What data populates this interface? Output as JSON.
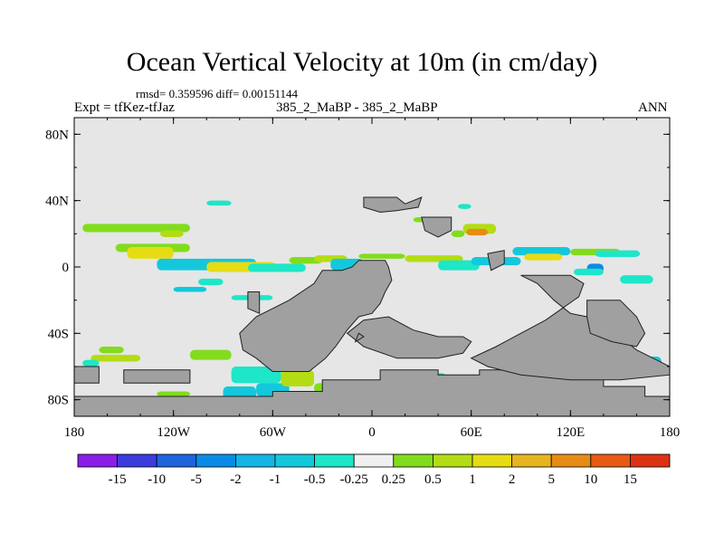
{
  "chart_data": {
    "type": "heatmap",
    "title": "Ocean Vertical Velocity at 10m (in cm/day)",
    "stats": "rmsd= 0.359596 diff= 0.00151144",
    "left_label": "Expt = tfKez-tfJaz",
    "center_label": "385_2_MaBP - 385_2_MaBP",
    "right_label": "ANN",
    "x_ticks": [
      "180",
      "120W",
      "60W",
      "0",
      "60E",
      "120E",
      "180"
    ],
    "y_ticks": [
      "80N",
      "40N",
      "0",
      "40S",
      "80S"
    ],
    "xlim": [
      -180,
      180
    ],
    "ylim": [
      -90,
      90
    ],
    "land_color": "#a0a0a0",
    "background_color": "#e6e6e6",
    "colorbar": {
      "labels": [
        "-15",
        "-10",
        "-5",
        "-2",
        "-1",
        "-0.5",
        "-0.25",
        "0.25",
        "0.5",
        "1",
        "2",
        "5",
        "10",
        "15"
      ],
      "colors": [
        "#8a1ee6",
        "#3c3cdc",
        "#1e64dc",
        "#0a8ce6",
        "#14b4e6",
        "#14c8dc",
        "#1ee6c8",
        "#f0f0f0",
        "#82dc1e",
        "#b4dc14",
        "#e6dc14",
        "#e6b41e",
        "#e68c14",
        "#e65a14",
        "#dc3214"
      ]
    }
  }
}
